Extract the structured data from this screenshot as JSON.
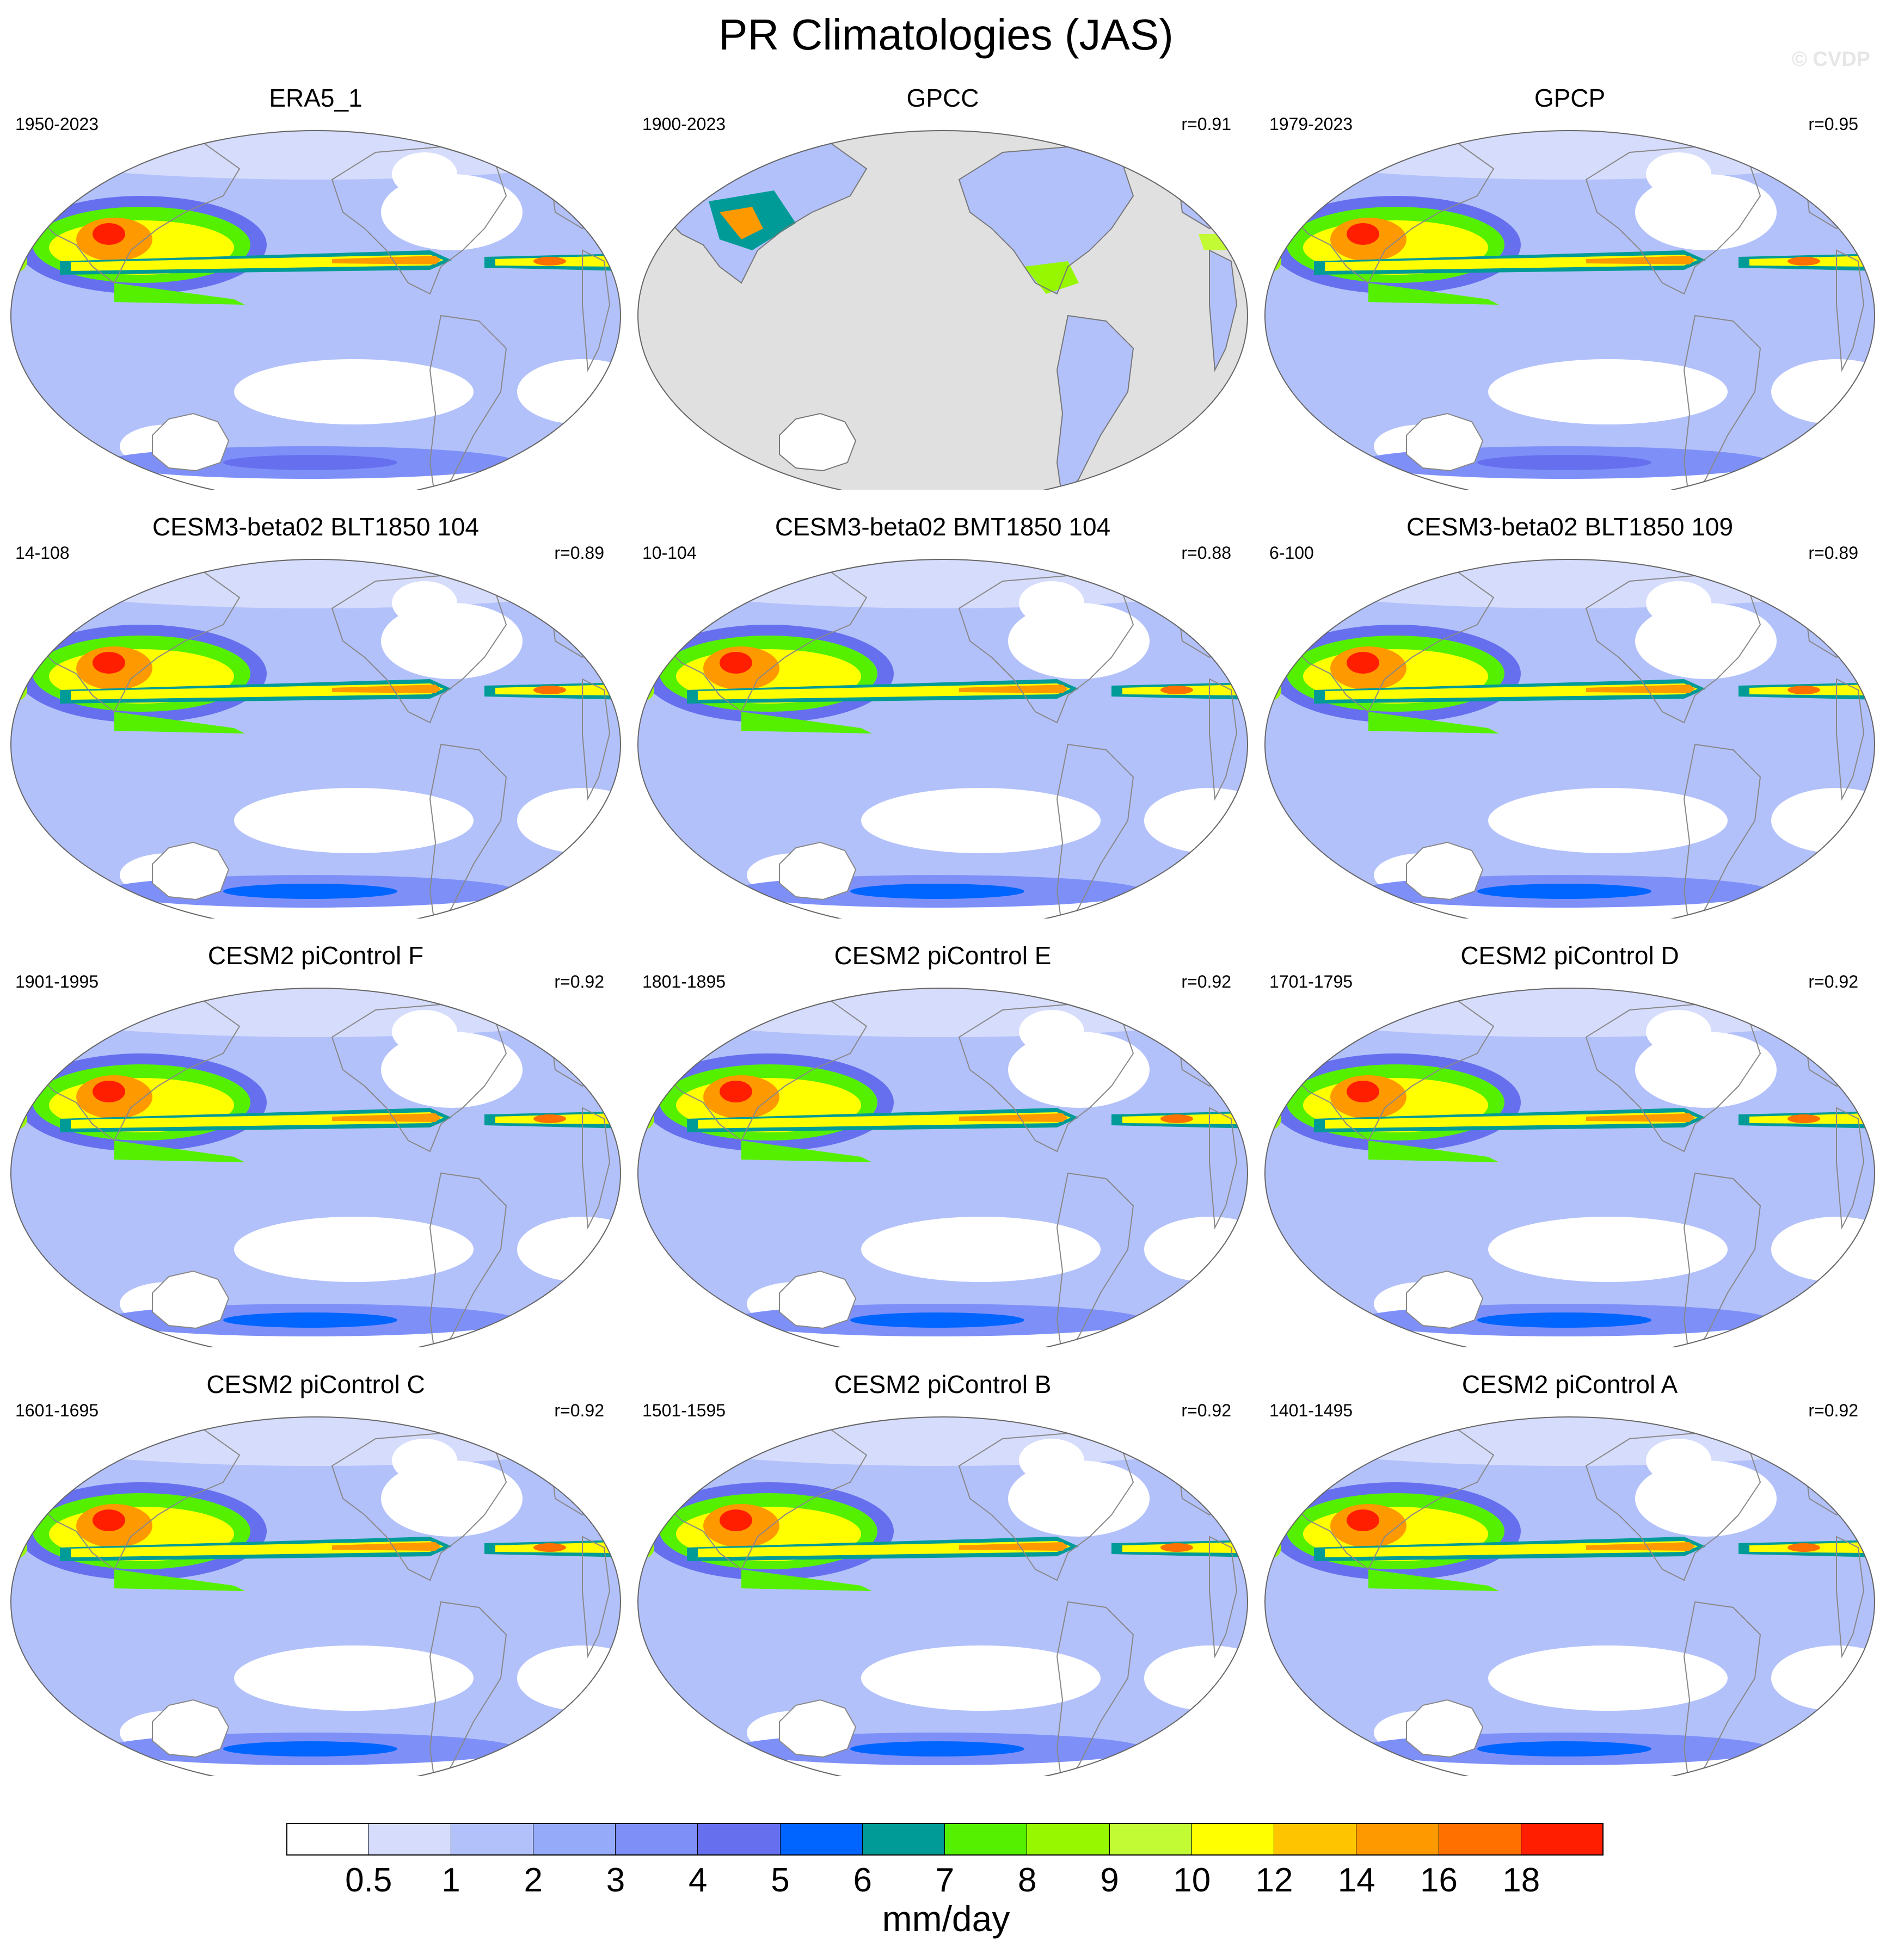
{
  "title": "PR Climatologies (JAS)",
  "watermark": "© CVDP",
  "panels": [
    {
      "title": "ERA5_1",
      "years": "1950-2023",
      "corr": "",
      "kind": "obs"
    },
    {
      "title": "GPCC",
      "years": "1900-2023",
      "corr": "r=0.91",
      "kind": "land"
    },
    {
      "title": "GPCP",
      "years": "1979-2023",
      "corr": "r=0.95",
      "kind": "obs"
    },
    {
      "title": "CESM3-beta02 BLT1850 104",
      "years": "14-108",
      "corr": "r=0.89",
      "kind": "model"
    },
    {
      "title": "CESM3-beta02 BMT1850 104",
      "years": "10-104",
      "corr": "r=0.88",
      "kind": "model"
    },
    {
      "title": "CESM3-beta02 BLT1850 109",
      "years": "6-100",
      "corr": "r=0.89",
      "kind": "model"
    },
    {
      "title": "CESM2 piControl F",
      "years": "1901-1995",
      "corr": "r=0.92",
      "kind": "model"
    },
    {
      "title": "CESM2 piControl E",
      "years": "1801-1895",
      "corr": "r=0.92",
      "kind": "model"
    },
    {
      "title": "CESM2 piControl D",
      "years": "1701-1795",
      "corr": "r=0.92",
      "kind": "model"
    },
    {
      "title": "CESM2 piControl C",
      "years": "1601-1695",
      "corr": "r=0.92",
      "kind": "model"
    },
    {
      "title": "CESM2 piControl B",
      "years": "1501-1595",
      "corr": "r=0.92",
      "kind": "model"
    },
    {
      "title": "CESM2 piControl A",
      "years": "1401-1495",
      "corr": "r=0.92",
      "kind": "model"
    }
  ],
  "colorbar": {
    "units": "mm/day",
    "levels": [
      "0.5",
      "1",
      "2",
      "3",
      "4",
      "5",
      "6",
      "7",
      "8",
      "9",
      "10",
      "12",
      "14",
      "16",
      "18"
    ],
    "colors": [
      "#ffffff",
      "#d6dcfb",
      "#b3c1fb",
      "#96aafa",
      "#7e90f8",
      "#6670ef",
      "#0064ff",
      "#009b96",
      "#55f000",
      "#97f700",
      "#c2fb34",
      "#ffff00",
      "#ffc400",
      "#ff9900",
      "#ff7000",
      "#ff1e00"
    ]
  }
}
